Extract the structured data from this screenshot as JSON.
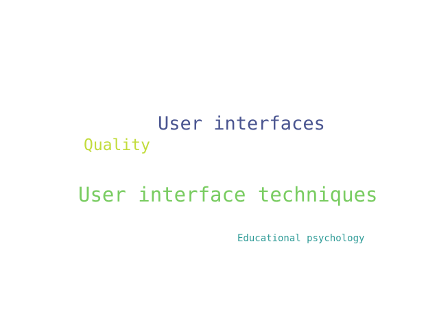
{
  "word_cloud": {
    "words": [
      {
        "text": "User interfaces",
        "color": "#4a5590"
      },
      {
        "text": "Quality",
        "color": "#c2dc3c"
      },
      {
        "text": "User interface techniques",
        "color": "#79cc61"
      },
      {
        "text": "Educational psychology",
        "color": "#2f9b97"
      }
    ]
  }
}
